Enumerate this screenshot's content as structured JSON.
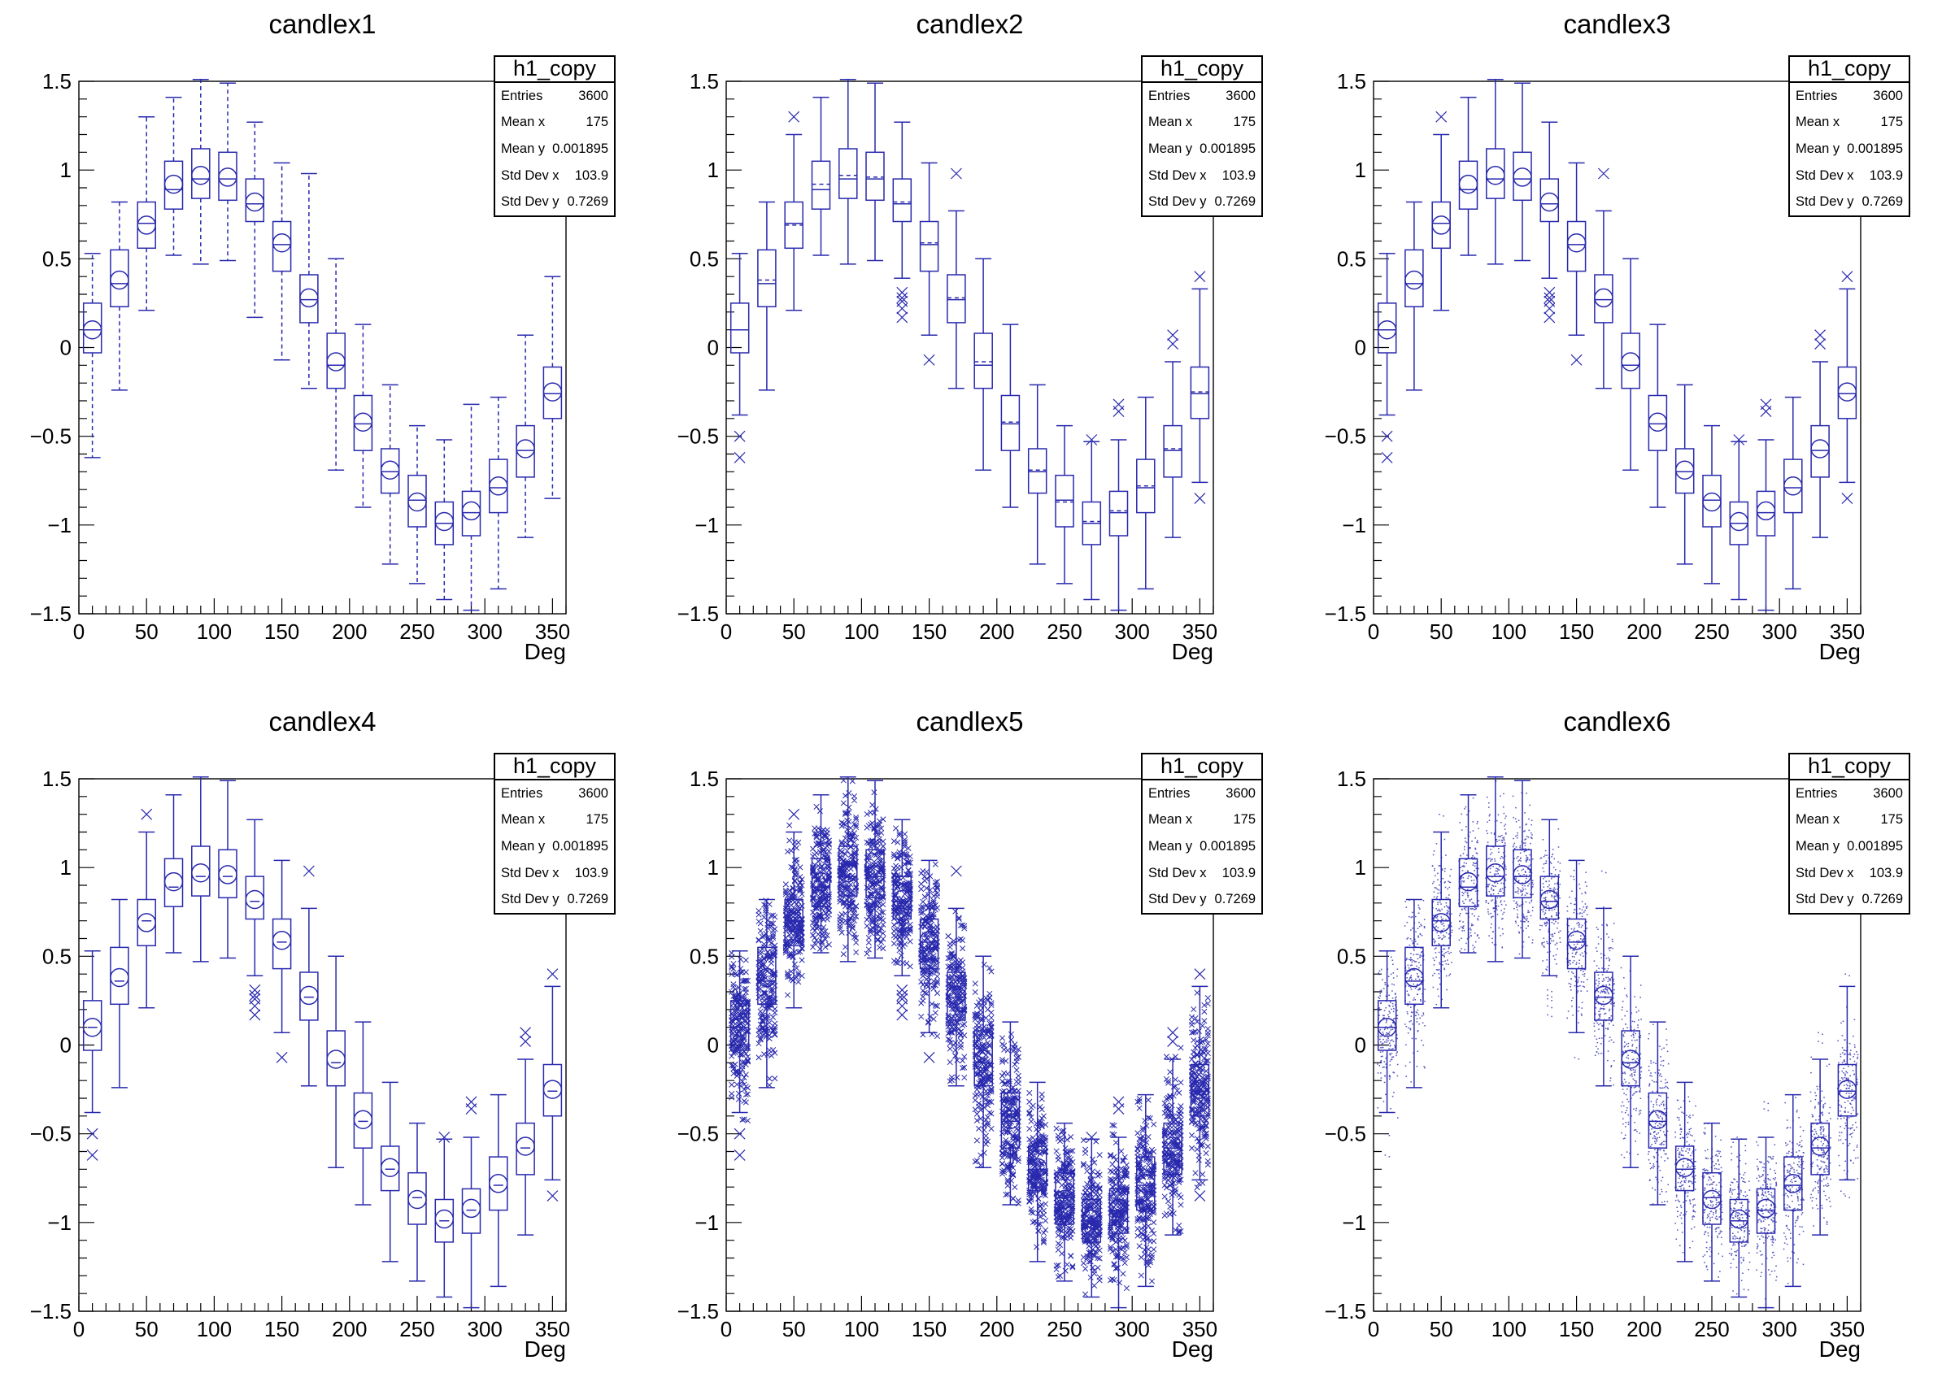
{
  "stats": {
    "title": "h1_copy",
    "rows": [
      {
        "label": "Entries",
        "value": "3600"
      },
      {
        "label": "Mean x",
        "value": "175"
      },
      {
        "label": "Mean y",
        "value": "0.001895"
      },
      {
        "label": "Std Dev x",
        "value": "103.9"
      },
      {
        "label": "Std Dev y",
        "value": "0.7269"
      }
    ]
  },
  "panels": [
    {
      "id": "candlex1",
      "title": "candlex1",
      "style": {
        "whisker": "minmax",
        "whisker_dashed": true,
        "median": "line",
        "mean": "circle",
        "outliers": false,
        "points": "none"
      }
    },
    {
      "id": "candlex2",
      "title": "candlex2",
      "style": {
        "whisker": "fence",
        "whisker_dashed": false,
        "median": "line",
        "mean": "dash",
        "outliers": true,
        "points": "none"
      }
    },
    {
      "id": "candlex3",
      "title": "candlex3",
      "style": {
        "whisker": "fence",
        "whisker_dashed": false,
        "median": "line",
        "mean": "circle",
        "outliers": true,
        "points": "none"
      }
    },
    {
      "id": "candlex4",
      "title": "candlex4",
      "style": {
        "whisker": "fence",
        "whisker_dashed": false,
        "median": "notch",
        "mean": "circle",
        "outliers": true,
        "points": "none"
      }
    },
    {
      "id": "candlex5",
      "title": "candlex5",
      "style": {
        "whisker": "fence",
        "whisker_dashed": false,
        "median": "line",
        "mean": "circle",
        "outliers": true,
        "points": "cross"
      }
    },
    {
      "id": "candlex6",
      "title": "candlex6",
      "style": {
        "whisker": "fence",
        "whisker_dashed": false,
        "median": "line",
        "mean": "circle",
        "outliers": false,
        "points": "dot"
      }
    }
  ],
  "chart_data": {
    "type": "candle",
    "xlabel": "Deg",
    "ylabel": "",
    "x_range": [
      0,
      360
    ],
    "y_range": [
      -1.5,
      1.5
    ],
    "x_major_ticks": [
      0,
      50,
      100,
      150,
      200,
      250,
      300,
      350
    ],
    "x_minor_step": 10,
    "y_major_ticks": [
      -1.5,
      -1,
      -0.5,
      0,
      0.5,
      1,
      1.5
    ],
    "y_minor_step": 0.1,
    "bin_width": 20,
    "entries_per_bin": 200,
    "color": "#2929ae",
    "background": "#ffffff",
    "bins": [
      {
        "x": 10,
        "q1": -0.03,
        "q3": 0.25,
        "median": 0.1,
        "mean": 0.1,
        "min": -0.62,
        "max": 0.53,
        "lo": -0.38,
        "hi": 0.53,
        "outliers": [
          -0.5,
          -0.62
        ]
      },
      {
        "x": 30,
        "q1": 0.23,
        "q3": 0.55,
        "median": 0.36,
        "mean": 0.38,
        "min": -0.24,
        "max": 0.82,
        "lo": -0.24,
        "hi": 0.82,
        "outliers": []
      },
      {
        "x": 50,
        "q1": 0.56,
        "q3": 0.82,
        "median": 0.7,
        "mean": 0.69,
        "min": 0.21,
        "max": 1.3,
        "lo": 0.21,
        "hi": 1.2,
        "outliers": [
          1.3
        ]
      },
      {
        "x": 70,
        "q1": 0.78,
        "q3": 1.05,
        "median": 0.89,
        "mean": 0.92,
        "min": 0.52,
        "max": 1.41,
        "lo": 0.52,
        "hi": 1.41,
        "outliers": []
      },
      {
        "x": 90,
        "q1": 0.84,
        "q3": 1.12,
        "median": 0.95,
        "mean": 0.97,
        "min": 0.47,
        "max": 1.51,
        "lo": 0.47,
        "hi": 1.51,
        "outliers": []
      },
      {
        "x": 110,
        "q1": 0.83,
        "q3": 1.1,
        "median": 0.95,
        "mean": 0.96,
        "min": 0.49,
        "max": 1.49,
        "lo": 0.49,
        "hi": 1.49,
        "outliers": []
      },
      {
        "x": 130,
        "q1": 0.71,
        "q3": 0.95,
        "median": 0.81,
        "mean": 0.82,
        "min": 0.17,
        "max": 1.27,
        "lo": 0.39,
        "hi": 1.27,
        "outliers": [
          0.31,
          0.28,
          0.26,
          0.22,
          0.17
        ]
      },
      {
        "x": 150,
        "q1": 0.43,
        "q3": 0.71,
        "median": 0.58,
        "mean": 0.59,
        "min": -0.07,
        "max": 1.04,
        "lo": 0.07,
        "hi": 1.04,
        "outliers": [
          -0.07
        ]
      },
      {
        "x": 170,
        "q1": 0.14,
        "q3": 0.41,
        "median": 0.27,
        "mean": 0.28,
        "min": -0.23,
        "max": 0.98,
        "lo": -0.23,
        "hi": 0.77,
        "outliers": [
          0.98
        ]
      },
      {
        "x": 190,
        "q1": -0.23,
        "q3": 0.08,
        "median": -0.1,
        "mean": -0.08,
        "min": -0.69,
        "max": 0.5,
        "lo": -0.69,
        "hi": 0.5,
        "outliers": []
      },
      {
        "x": 210,
        "q1": -0.58,
        "q3": -0.27,
        "median": -0.43,
        "mean": -0.42,
        "min": -0.9,
        "max": 0.13,
        "lo": -0.9,
        "hi": 0.13,
        "outliers": []
      },
      {
        "x": 230,
        "q1": -0.82,
        "q3": -0.57,
        "median": -0.7,
        "mean": -0.69,
        "min": -1.22,
        "max": -0.21,
        "lo": -1.22,
        "hi": -0.21,
        "outliers": []
      },
      {
        "x": 250,
        "q1": -1.01,
        "q3": -0.72,
        "median": -0.86,
        "mean": -0.87,
        "min": -1.33,
        "max": -0.44,
        "lo": -1.33,
        "hi": -0.44,
        "outliers": []
      },
      {
        "x": 270,
        "q1": -1.11,
        "q3": -0.87,
        "median": -0.99,
        "mean": -0.98,
        "min": -1.42,
        "max": -0.52,
        "lo": -1.42,
        "hi": -0.53,
        "outliers": [
          -0.52
        ]
      },
      {
        "x": 290,
        "q1": -1.06,
        "q3": -0.81,
        "median": -0.93,
        "mean": -0.92,
        "min": -1.48,
        "max": -0.32,
        "lo": -1.48,
        "hi": -0.52,
        "outliers": [
          -0.32,
          -0.36
        ]
      },
      {
        "x": 310,
        "q1": -0.93,
        "q3": -0.63,
        "median": -0.79,
        "mean": -0.78,
        "min": -1.36,
        "max": -0.28,
        "lo": -1.36,
        "hi": -0.28,
        "outliers": []
      },
      {
        "x": 330,
        "q1": -0.73,
        "q3": -0.44,
        "median": -0.58,
        "mean": -0.57,
        "min": -1.07,
        "max": 0.07,
        "lo": -1.07,
        "hi": -0.08,
        "outliers": [
          0.07,
          0.02
        ]
      },
      {
        "x": 350,
        "q1": -0.4,
        "q3": -0.11,
        "median": -0.26,
        "mean": -0.25,
        "min": -0.85,
        "max": 0.4,
        "lo": -0.76,
        "hi": 0.33,
        "outliers": [
          0.4,
          -0.85
        ]
      }
    ]
  }
}
